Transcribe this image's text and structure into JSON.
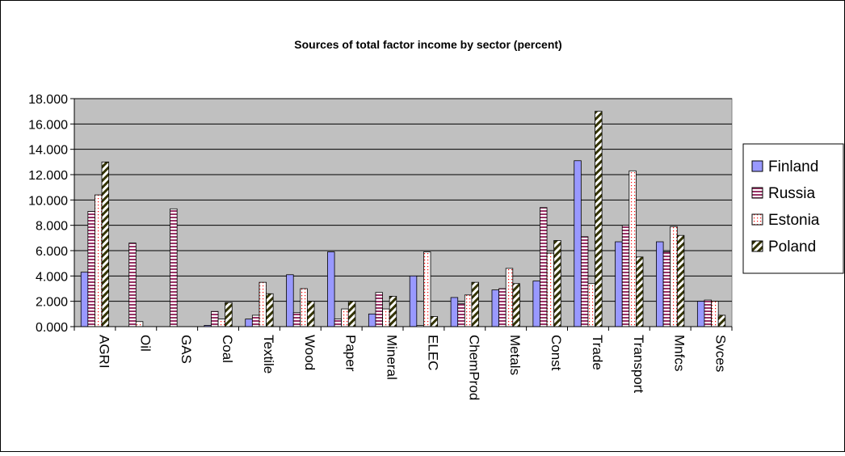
{
  "chart_data": {
    "type": "bar",
    "title": "Sources of total factor income by sector (percent)",
    "xlabel": "",
    "ylabel": "",
    "ylim": [
      0,
      18
    ],
    "yticks": [
      "0.000",
      "2.000",
      "4.000",
      "6.000",
      "8.000",
      "10.000",
      "12.000",
      "14.000",
      "16.000",
      "18.000"
    ],
    "grid": true,
    "legend_position": "right",
    "categories": [
      "AGRI",
      "Oil",
      "GAS",
      "Coal",
      "Textile",
      "Wood",
      "Paper",
      "Mineral",
      "ELEC",
      "ChemProd",
      "Metals",
      "Const",
      "Trade",
      "Transport",
      "Mnfcs",
      "Svces"
    ],
    "series": [
      {
        "name": "Finland",
        "color": "#9999ff",
        "pattern": "solid",
        "values": [
          4.3,
          0.0,
          0.0,
          0.1,
          0.6,
          4.1,
          5.9,
          1.0,
          4.0,
          2.3,
          2.9,
          3.6,
          13.1,
          6.7,
          6.7,
          2.0
        ]
      },
      {
        "name": "Russia",
        "color": "#993366",
        "pattern": "hstripe",
        "values": [
          9.1,
          6.6,
          9.3,
          1.2,
          0.9,
          1.1,
          0.6,
          2.7,
          0.1,
          1.8,
          3.0,
          9.4,
          7.1,
          8.0,
          5.9,
          2.1
        ]
      },
      {
        "name": "Estonia",
        "color": "#ff0000",
        "pattern": "dots",
        "values": [
          10.4,
          0.4,
          0.0,
          0.6,
          3.5,
          3.0,
          1.4,
          1.4,
          5.9,
          2.5,
          4.6,
          5.8,
          3.4,
          12.3,
          7.9,
          2.0
        ]
      },
      {
        "name": "Poland",
        "color": "#333300",
        "pattern": "diagonal",
        "values": [
          13.0,
          0.0,
          0.0,
          1.9,
          2.6,
          2.0,
          2.0,
          2.4,
          0.8,
          3.5,
          3.4,
          6.8,
          17.0,
          5.5,
          7.2,
          0.9
        ]
      }
    ]
  }
}
